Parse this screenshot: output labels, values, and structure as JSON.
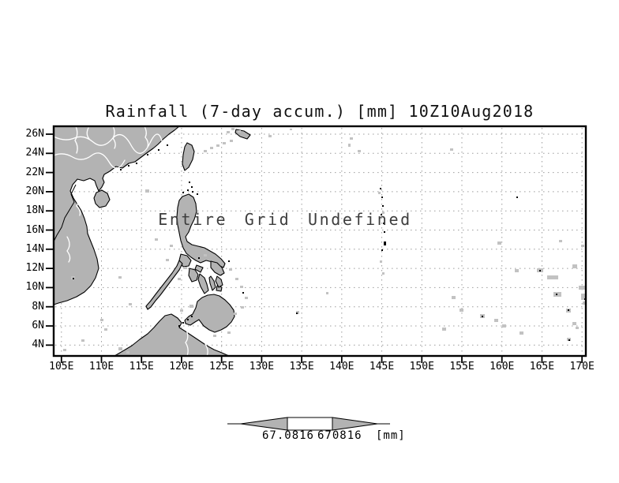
{
  "title": "Rainfall (7-day accum.) [mm] 10Z10Aug2018",
  "map": {
    "overlay_message": "Entire Grid Undefined",
    "y_axis_labels": [
      "26N",
      "24N",
      "22N",
      "20N",
      "18N",
      "16N",
      "14N",
      "12N",
      "10N",
      "8N",
      "6N",
      "4N"
    ],
    "x_axis_labels": [
      "105E",
      "110E",
      "115E",
      "120E",
      "125E",
      "130E",
      "135E",
      "140E",
      "145E",
      "150E",
      "155E",
      "160E",
      "165E",
      "170E"
    ]
  },
  "colorbar": {
    "min_value": "67.0816",
    "max_value": "670816",
    "units": "[mm]"
  },
  "colors": {
    "land": "#b3b3b3",
    "speck": "#c2c2c2",
    "gridline": "#9c9c9c",
    "frame": "#000000",
    "river": "#ffffff",
    "overlay_text": "#3d3d3d"
  }
}
